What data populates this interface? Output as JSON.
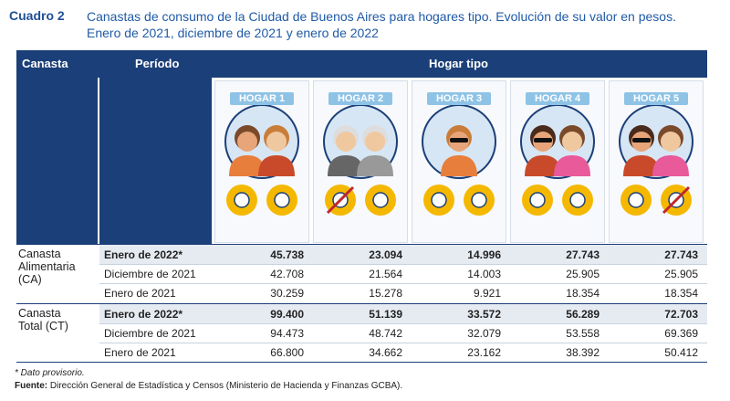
{
  "header": {
    "label": "Cuadro 2",
    "title": [
      "Canastas de consumo de la Ciudad de Buenos Aires para hogares tipo. Evolución de su valor en pesos.",
      "Enero de 2021, diciembre de 2021 y enero de 2022"
    ]
  },
  "table": {
    "columns": [
      "Canasta",
      "Período",
      "Hogar tipo"
    ],
    "households": [
      "HOGAR 1",
      "HOGAR 2",
      "HOGAR 3",
      "HOGAR 4",
      "HOGAR 5"
    ],
    "groups": [
      {
        "name": [
          "Canasta",
          "Alimentaria",
          "(CA)"
        ],
        "rows": [
          {
            "period": "Enero de 2022*",
            "values": [
              "45.738",
              "23.094",
              "14.996",
              "27.743",
              "27.743"
            ]
          },
          {
            "period": "Diciembre de 2021",
            "values": [
              "42.708",
              "21.564",
              "14.003",
              "25.905",
              "25.905"
            ]
          },
          {
            "period": "Enero de 2021",
            "values": [
              "30.259",
              "15.278",
              "9.921",
              "18.354",
              "18.354"
            ]
          }
        ]
      },
      {
        "name": [
          "Canasta",
          "Total (CT)"
        ],
        "rows": [
          {
            "period": "Enero de 2022*",
            "values": [
              "99.400",
              "51.139",
              "33.572",
              "56.289",
              "72.703"
            ]
          },
          {
            "period": "Diciembre de 2021",
            "values": [
              "94.473",
              "48.742",
              "32.079",
              "53.558",
              "69.369"
            ]
          },
          {
            "period": "Enero de 2021",
            "values": [
              "66.800",
              "34.662",
              "23.162",
              "38.392",
              "50.412"
            ]
          }
        ]
      }
    ]
  },
  "footnotes": {
    "note": "* Dato provisorio.",
    "source_label": "Fuente:",
    "source": "Dirección General de Estadística y Censos (Ministerio de Hacienda y Finanzas GCBA)."
  }
}
